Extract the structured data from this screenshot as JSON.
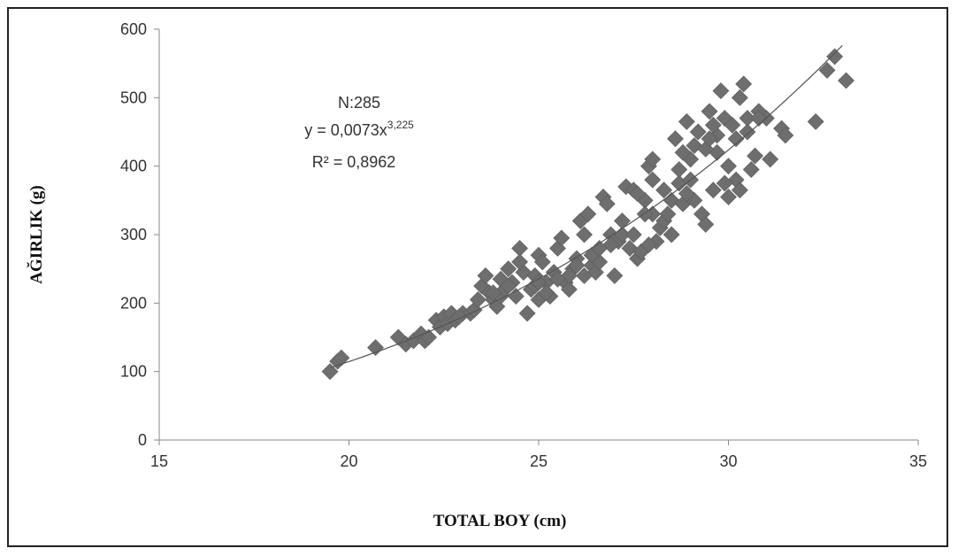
{
  "chart_data": {
    "type": "scatter",
    "xlabel": "TOTAL BOY (cm)",
    "ylabel": "AĞIRLIK (g)",
    "xlim": [
      15,
      35
    ],
    "ylim": [
      0,
      600
    ],
    "xticks": [
      15,
      20,
      25,
      30,
      35
    ],
    "yticks": [
      0,
      100,
      200,
      300,
      400,
      500,
      600
    ],
    "grid": false,
    "marker_color": "#6e6e6e",
    "line_color": "#555555",
    "annotation": {
      "n": "N:285",
      "equation_base": "y = 0,0073x",
      "equation_exponent": "3,225",
      "r2": "R² = 0,8962"
    },
    "trendline": {
      "a": 0.0073,
      "b": 3.225,
      "x_range": [
        19.5,
        33
      ]
    },
    "points": [
      [
        19.5,
        100
      ],
      [
        19.7,
        115
      ],
      [
        19.8,
        120
      ],
      [
        20.7,
        135
      ],
      [
        21.3,
        150
      ],
      [
        21.5,
        140
      ],
      [
        21.7,
        145
      ],
      [
        21.9,
        155
      ],
      [
        22.0,
        145
      ],
      [
        22.1,
        150
      ],
      [
        22.3,
        175
      ],
      [
        22.4,
        165
      ],
      [
        22.5,
        180
      ],
      [
        22.6,
        170
      ],
      [
        22.7,
        185
      ],
      [
        22.8,
        175
      ],
      [
        23.0,
        185
      ],
      [
        23.2,
        185
      ],
      [
        23.3,
        190
      ],
      [
        23.4,
        205
      ],
      [
        23.5,
        225
      ],
      [
        23.6,
        240
      ],
      [
        23.7,
        215
      ],
      [
        23.8,
        205
      ],
      [
        23.9,
        195
      ],
      [
        24.0,
        210
      ],
      [
        24.1,
        220
      ],
      [
        24.2,
        250
      ],
      [
        24.3,
        230
      ],
      [
        24.4,
        210
      ],
      [
        24.5,
        280
      ],
      [
        24.6,
        245
      ],
      [
        24.7,
        185
      ],
      [
        24.8,
        220
      ],
      [
        24.9,
        240
      ],
      [
        25.0,
        270
      ],
      [
        25.1,
        260
      ],
      [
        25.2,
        230
      ],
      [
        25.3,
        210
      ],
      [
        25.4,
        245
      ],
      [
        25.5,
        280
      ],
      [
        25.6,
        295
      ],
      [
        25.7,
        230
      ],
      [
        25.8,
        220
      ],
      [
        25.9,
        250
      ],
      [
        26.0,
        265
      ],
      [
        26.1,
        320
      ],
      [
        26.2,
        240
      ],
      [
        26.3,
        330
      ],
      [
        26.4,
        255
      ],
      [
        26.5,
        245
      ],
      [
        26.6,
        260
      ],
      [
        26.7,
        355
      ],
      [
        26.8,
        345
      ],
      [
        26.9,
        300
      ],
      [
        27.0,
        240
      ],
      [
        27.1,
        290
      ],
      [
        27.2,
        300
      ],
      [
        27.3,
        370
      ],
      [
        27.4,
        280
      ],
      [
        27.5,
        365
      ],
      [
        27.6,
        265
      ],
      [
        27.7,
        275
      ],
      [
        27.8,
        350
      ],
      [
        27.9,
        400
      ],
      [
        28.0,
        410
      ],
      [
        28.1,
        290
      ],
      [
        28.2,
        310
      ],
      [
        28.3,
        320
      ],
      [
        28.4,
        330
      ],
      [
        28.5,
        350
      ],
      [
        28.6,
        440
      ],
      [
        28.7,
        375
      ],
      [
        28.8,
        345
      ],
      [
        28.9,
        465
      ],
      [
        29.0,
        380
      ],
      [
        29.1,
        430
      ],
      [
        29.2,
        450
      ],
      [
        29.3,
        330
      ],
      [
        29.4,
        315
      ],
      [
        29.5,
        480
      ],
      [
        29.6,
        365
      ],
      [
        29.7,
        420
      ],
      [
        29.8,
        510
      ],
      [
        29.9,
        470
      ],
      [
        30.0,
        355
      ],
      [
        30.1,
        460
      ],
      [
        30.2,
        380
      ],
      [
        30.3,
        500
      ],
      [
        30.4,
        520
      ],
      [
        30.5,
        450
      ],
      [
        30.6,
        395
      ],
      [
        30.7,
        415
      ],
      [
        30.8,
        480
      ],
      [
        31.0,
        470
      ],
      [
        31.1,
        410
      ],
      [
        31.4,
        455
      ],
      [
        31.5,
        445
      ],
      [
        32.3,
        465
      ],
      [
        32.6,
        540
      ],
      [
        32.8,
        560
      ],
      [
        33.1,
        525
      ],
      [
        24.0,
        235
      ],
      [
        24.2,
        225
      ],
      [
        25.0,
        205
      ],
      [
        25.2,
        215
      ],
      [
        25.8,
        240
      ],
      [
        26.4,
        270
      ],
      [
        26.9,
        285
      ],
      [
        27.5,
        300
      ],
      [
        28.0,
        330
      ],
      [
        28.3,
        365
      ],
      [
        28.7,
        395
      ],
      [
        29.0,
        410
      ],
      [
        29.4,
        425
      ],
      [
        29.7,
        445
      ],
      [
        30.2,
        440
      ],
      [
        30.5,
        470
      ],
      [
        27.9,
        285
      ],
      [
        28.5,
        300
      ],
      [
        29.1,
        350
      ],
      [
        29.9,
        375
      ],
      [
        30.3,
        365
      ],
      [
        28.0,
        380
      ],
      [
        28.8,
        420
      ],
      [
        29.5,
        440
      ],
      [
        26.0,
        255
      ],
      [
        26.6,
        280
      ],
      [
        27.2,
        320
      ],
      [
        27.8,
        330
      ],
      [
        25.5,
        235
      ],
      [
        24.9,
        225
      ],
      [
        23.8,
        215
      ],
      [
        22.9,
        180
      ],
      [
        24.5,
        260
      ],
      [
        25.0,
        230
      ],
      [
        26.2,
        300
      ],
      [
        27.6,
        360
      ],
      [
        28.9,
        360
      ],
      [
        30.0,
        400
      ],
      [
        30.8,
        470
      ],
      [
        29.6,
        460
      ]
    ]
  }
}
